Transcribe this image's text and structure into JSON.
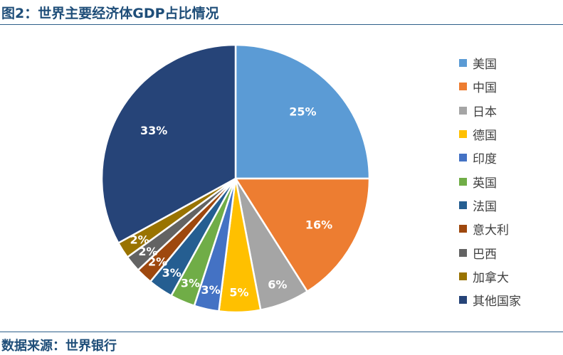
{
  "header": {
    "title": "图2：世界主要经济体GDP占比情况"
  },
  "footer": {
    "source": "数据来源：世界银行"
  },
  "chart_data": {
    "type": "pie",
    "title": "图2：世界主要经济体GDP占比情况",
    "legend_position": "right",
    "slices": [
      {
        "label": "美国",
        "value": 25,
        "display": "25%",
        "color": "#5b9bd5"
      },
      {
        "label": "中国",
        "value": 16,
        "display": "16%",
        "color": "#ed7d31"
      },
      {
        "label": "日本",
        "value": 6,
        "display": "6%",
        "color": "#a5a5a5"
      },
      {
        "label": "德国",
        "value": 5,
        "display": "5%",
        "color": "#ffc000"
      },
      {
        "label": "印度",
        "value": 3,
        "display": "3%",
        "color": "#4472c4"
      },
      {
        "label": "英国",
        "value": 3,
        "display": "3%",
        "color": "#70ad47"
      },
      {
        "label": "法国",
        "value": 3,
        "display": "3%",
        "color": "#255e91"
      },
      {
        "label": "意大利",
        "value": 2,
        "display": "2%",
        "color": "#9e480e"
      },
      {
        "label": "巴西",
        "value": 2,
        "display": "2%",
        "color": "#636363"
      },
      {
        "label": "加拿大",
        "value": 2,
        "display": "2%",
        "color": "#997300"
      },
      {
        "label": "其他国家",
        "value": 33,
        "display": "33%",
        "color": "#264478"
      }
    ]
  }
}
